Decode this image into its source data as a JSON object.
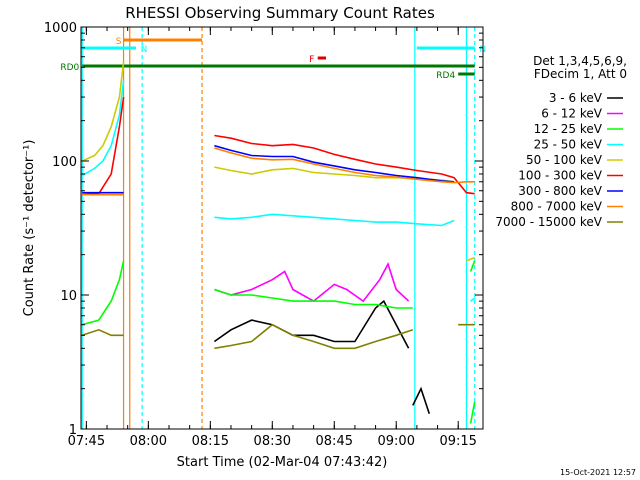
{
  "chart_data": {
    "type": "line",
    "title": "RHESSI Observing Summary Count Rates",
    "xlabel": "Start Time (02-Mar-04 07:43:42)",
    "ylabel": "Count Rate (s⁻¹ detector⁻¹)",
    "y_scale": "log",
    "ylim": [
      1,
      1000
    ],
    "xlim": [
      "07:43:42",
      "09:21:00"
    ],
    "x_tick_labels": [
      "07:45",
      "08:00",
      "08:15",
      "08:30",
      "08:45",
      "09:00",
      "09:15"
    ],
    "y_tick_labels": [
      "1",
      "10",
      "100",
      "1000"
    ],
    "footer_timestamp": "15-Oct-2021 12:57",
    "legend": {
      "header_lines": [
        "Det 1,3,4,5,6,9,",
        "FDecim 1, Att 0"
      ],
      "placement": "right"
    },
    "flags": [
      {
        "label": "S",
        "color": "#ff8000",
        "start": "07:54:00",
        "end": "08:13:00"
      },
      {
        "label": "N",
        "color": "#00ffff",
        "start": "07:44:00",
        "end": "07:57:00"
      },
      {
        "label": "N",
        "color": "#00ffff",
        "start": "09:05:00",
        "end": "09:19:00"
      },
      {
        "label": "F",
        "color": "#dd0000",
        "start": "08:41:00",
        "end": "08:43:00"
      },
      {
        "label": "RD0",
        "color": "#007700",
        "start": "07:44:00",
        "end": "09:19:00"
      },
      {
        "label": "RD4",
        "color": "#007700",
        "start": "09:15:00",
        "end": "09:19:00"
      }
    ],
    "vertical_lines": [
      {
        "time": "07:44:00",
        "color": "#00ffff",
        "dashed": false
      },
      {
        "time": "07:54:00",
        "color": "#ff8000",
        "dashed": false
      },
      {
        "time": "07:55:30",
        "color": "#ff8000",
        "dashed": false
      },
      {
        "time": "07:58:30",
        "color": "#00ffff",
        "dashed": true
      },
      {
        "time": "08:13:00",
        "color": "#ff8000",
        "dashed": true
      },
      {
        "time": "09:04:30",
        "color": "#00ffff",
        "dashed": false
      },
      {
        "time": "09:17:00",
        "color": "#00ffff",
        "dashed": false
      },
      {
        "time": "09:19:00",
        "color": "#00ffff",
        "dashed": true
      }
    ],
    "series": [
      {
        "name": "3 - 6 keV",
        "color": "#000000",
        "segments": [
          [
            [
              "08:16",
              4.5
            ],
            [
              "08:20",
              5.5
            ],
            [
              "08:25",
              6.5
            ],
            [
              "08:30",
              6
            ],
            [
              "08:35",
              5
            ],
            [
              "08:40",
              5
            ],
            [
              "08:45",
              4.5
            ],
            [
              "08:50",
              4.5
            ],
            [
              "08:55",
              8
            ],
            [
              "08:57",
              9
            ],
            [
              "09:00",
              6
            ],
            [
              "09:03",
              4
            ]
          ],
          [
            [
              "09:04",
              1.5
            ],
            [
              "09:06",
              2
            ],
            [
              "09:08",
              1.3
            ]
          ]
        ]
      },
      {
        "name": "6 - 12 keV",
        "color": "#ff00ff",
        "segments": [
          [
            [
              "08:16",
              11
            ],
            [
              "08:20",
              10
            ],
            [
              "08:25",
              11
            ],
            [
              "08:30",
              13
            ],
            [
              "08:33",
              15
            ],
            [
              "08:35",
              11
            ],
            [
              "08:40",
              9
            ],
            [
              "08:45",
              12
            ],
            [
              "08:48",
              11
            ],
            [
              "08:52",
              9
            ],
            [
              "08:56",
              13
            ],
            [
              "08:58",
              17
            ],
            [
              "09:00",
              11
            ],
            [
              "09:03",
              9
            ]
          ]
        ]
      },
      {
        "name": "12 - 25 keV",
        "color": "#00ff00",
        "segments": [
          [
            [
              "07:44",
              6
            ],
            [
              "07:48",
              6.5
            ],
            [
              "07:51",
              9
            ],
            [
              "07:53",
              13
            ],
            [
              "07:54",
              18
            ]
          ],
          [
            [
              "08:16",
              11
            ],
            [
              "08:20",
              10
            ],
            [
              "08:25",
              10
            ],
            [
              "08:30",
              9.5
            ],
            [
              "08:35",
              9
            ],
            [
              "08:40",
              9
            ],
            [
              "08:45",
              9
            ],
            [
              "08:50",
              8.5
            ],
            [
              "08:55",
              8.5
            ],
            [
              "09:00",
              8
            ],
            [
              "09:04",
              8
            ]
          ],
          [
            [
              "09:18",
              15
            ],
            [
              "09:19",
              18
            ]
          ],
          [
            [
              "09:18",
              1.1
            ],
            [
              "09:19",
              1.6
            ]
          ]
        ]
      },
      {
        "name": "25 - 50 keV",
        "color": "#00ffff",
        "segments": [
          [
            [
              "07:44",
              78
            ],
            [
              "07:47",
              88
            ],
            [
              "07:49",
              100
            ],
            [
              "07:51",
              130
            ],
            [
              "07:53",
              220
            ],
            [
              "07:54",
              400
            ]
          ],
          [
            [
              "08:16",
              38
            ],
            [
              "08:20",
              37
            ],
            [
              "08:25",
              38
            ],
            [
              "08:30",
              40
            ],
            [
              "08:35",
              39
            ],
            [
              "08:40",
              38
            ],
            [
              "08:45",
              37
            ],
            [
              "08:50",
              36
            ],
            [
              "08:55",
              35
            ],
            [
              "09:00",
              35
            ],
            [
              "09:05",
              34
            ],
            [
              "09:11",
              33
            ],
            [
              "09:14",
              36
            ]
          ],
          [
            [
              "09:18",
              9
            ],
            [
              "09:19",
              9.5
            ]
          ]
        ]
      },
      {
        "name": "50 - 100 keV",
        "color": "#cccc00",
        "segments": [
          [
            [
              "07:44",
              100
            ],
            [
              "07:47",
              110
            ],
            [
              "07:49",
              130
            ],
            [
              "07:51",
              180
            ],
            [
              "07:53",
              300
            ],
            [
              "07:54",
              550
            ]
          ],
          [
            [
              "08:16",
              90
            ],
            [
              "08:20",
              85
            ],
            [
              "08:25",
              80
            ],
            [
              "08:30",
              86
            ],
            [
              "08:35",
              88
            ],
            [
              "08:40",
              82
            ],
            [
              "08:45",
              80
            ],
            [
              "08:50",
              78
            ],
            [
              "08:55",
              75
            ],
            [
              "09:00",
              75
            ],
            [
              "09:05",
              74
            ],
            [
              "09:11",
              72
            ],
            [
              "09:14",
              70
            ]
          ],
          [
            [
              "09:17",
              18
            ],
            [
              "09:19",
              19
            ]
          ]
        ]
      },
      {
        "name": "100 - 300 keV",
        "color": "#ff0000",
        "segments": [
          [
            [
              "07:44",
              56
            ],
            [
              "07:48",
              57
            ],
            [
              "07:51",
              80
            ],
            [
              "07:53",
              180
            ],
            [
              "07:54",
              300
            ]
          ],
          [
            [
              "08:16",
              155
            ],
            [
              "08:20",
              148
            ],
            [
              "08:25",
              135
            ],
            [
              "08:30",
              130
            ],
            [
              "08:35",
              133
            ],
            [
              "08:40",
              125
            ],
            [
              "08:45",
              112
            ],
            [
              "08:50",
              103
            ],
            [
              "08:55",
              95
            ],
            [
              "09:00",
              90
            ],
            [
              "09:05",
              85
            ],
            [
              "09:11",
              80
            ],
            [
              "09:14",
              75
            ],
            [
              "09:17",
              58
            ],
            [
              "09:19",
              57
            ]
          ]
        ]
      },
      {
        "name": "300 - 800 keV",
        "color": "#0000ff",
        "segments": [
          [
            [
              "07:44",
              58
            ],
            [
              "07:48",
              58
            ],
            [
              "07:51",
              58
            ],
            [
              "07:54",
              58
            ]
          ],
          [
            [
              "08:16",
              130
            ],
            [
              "08:20",
              120
            ],
            [
              "08:25",
              110
            ],
            [
              "08:30",
              108
            ],
            [
              "08:35",
              108
            ],
            [
              "08:40",
              98
            ],
            [
              "08:45",
              92
            ],
            [
              "08:50",
              86
            ],
            [
              "08:55",
              82
            ],
            [
              "09:00",
              78
            ],
            [
              "09:05",
              75
            ],
            [
              "09:11",
              71
            ],
            [
              "09:14",
              70
            ]
          ]
        ]
      },
      {
        "name": "800 - 7000 keV",
        "color": "#ff8000",
        "segments": [
          [
            [
              "07:44",
              56
            ],
            [
              "07:48",
              56
            ],
            [
              "07:51",
              56
            ],
            [
              "07:54",
              56
            ]
          ],
          [
            [
              "08:16",
              125
            ],
            [
              "08:20",
              115
            ],
            [
              "08:25",
              105
            ],
            [
              "08:30",
              102
            ],
            [
              "08:35",
              103
            ],
            [
              "08:40",
              95
            ],
            [
              "08:45",
              88
            ],
            [
              "08:50",
              82
            ],
            [
              "08:55",
              78
            ],
            [
              "09:00",
              76
            ],
            [
              "09:05",
              73
            ],
            [
              "09:11",
              70
            ],
            [
              "09:14",
              69
            ],
            [
              "09:17",
              70
            ],
            [
              "09:19",
              70
            ]
          ]
        ]
      },
      {
        "name": "7000 - 15000 keV",
        "color": "#808000",
        "segments": [
          [
            [
              "07:44",
              5
            ],
            [
              "07:48",
              5.5
            ],
            [
              "07:51",
              5
            ],
            [
              "07:54",
              5
            ]
          ],
          [
            [
              "08:16",
              4
            ],
            [
              "08:20",
              4.2
            ],
            [
              "08:25",
              4.5
            ],
            [
              "08:30",
              6
            ],
            [
              "08:35",
              5
            ],
            [
              "08:40",
              4.5
            ],
            [
              "08:45",
              4
            ],
            [
              "08:50",
              4
            ],
            [
              "08:55",
              4.5
            ],
            [
              "09:00",
              5
            ],
            [
              "09:04",
              5.5
            ]
          ],
          [
            [
              "09:15",
              6
            ],
            [
              "09:17",
              6
            ],
            [
              "09:19",
              6
            ]
          ]
        ]
      }
    ]
  }
}
